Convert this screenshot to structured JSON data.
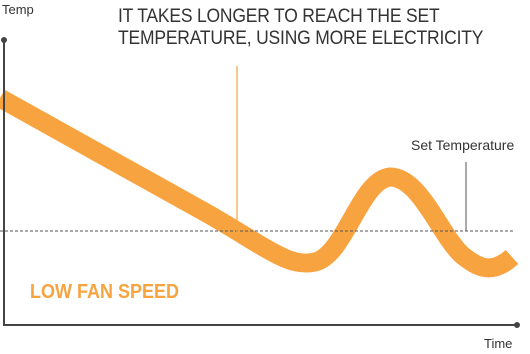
{
  "axes": {
    "y_label": "Temp",
    "x_label": "Time"
  },
  "annotation": {
    "line1": "IT TAKES LONGER TO REACH THE SET",
    "line2": "TEMPERATURE, USING MORE ELECTRICITY"
  },
  "set_temperature_label": "Set Temperature",
  "mode_label": "LOW FAN SPEED",
  "colors": {
    "curve": "#F7A440",
    "mode_text": "#F7A440",
    "axis": "#444444",
    "set_line": "#555555",
    "text": "#333333"
  }
}
